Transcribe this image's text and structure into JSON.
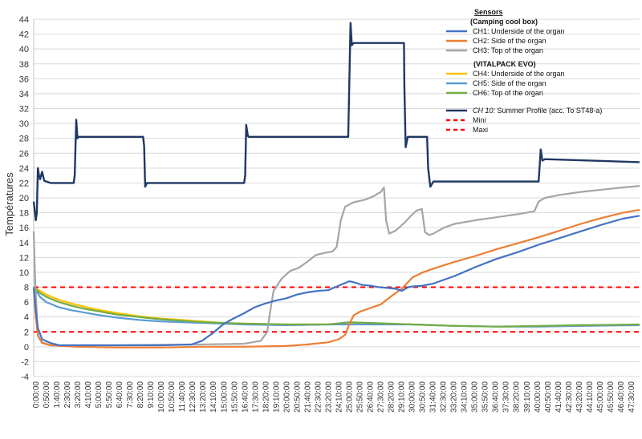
{
  "chart_data": {
    "type": "line",
    "ylabel": "Températures",
    "ylim": [
      -4,
      44
    ],
    "yticks": [
      -4,
      -2,
      0,
      2,
      4,
      6,
      8,
      10,
      12,
      14,
      16,
      18,
      20,
      22,
      24,
      26,
      28,
      30,
      32,
      34,
      36,
      38,
      40,
      42,
      44
    ],
    "xlim_minutes": [
      0,
      2880
    ],
    "grid": "horizontal",
    "legend_position": "top-right",
    "x_tick_labels": [
      "0:00:00",
      "0:50:00",
      "1:40:00",
      "2:30:00",
      "3:20:00",
      "4:10:00",
      "5:00:00",
      "5:50:00",
      "6:40:00",
      "7:30:00",
      "8:20:00",
      "9:10:00",
      "10:00:00",
      "10:50:00",
      "11:40:00",
      "12:30:00",
      "13:20:00",
      "14:10:00",
      "15:00:00",
      "15:50:00",
      "16:40:00",
      "17:30:00",
      "18:20:00",
      "19:10:00",
      "20:00:00",
      "20:50:00",
      "21:40:00",
      "22:30:00",
      "23:20:00",
      "24:10:00",
      "25:00:00",
      "25:50:00",
      "26:40:00",
      "27:30:00",
      "28:20:00",
      "29:10:00",
      "30:00:00",
      "30:50:00",
      "31:40:00",
      "32:30:00",
      "33:20:00",
      "34:10:00",
      "35:00:00",
      "35:50:00",
      "36:40:00",
      "37:30:00",
      "38:20:00",
      "39:10:00",
      "40:00:00",
      "40:50:00",
      "41:40:00",
      "42:30:00",
      "43:20:00",
      "44:10:00",
      "45:00:00",
      "45:50:00",
      "46:40:00",
      "47:30:00"
    ],
    "legend": {
      "sensors_title": "Sensors",
      "group1_title": "(Camping cool box)",
      "group2_title": "(VITALPACK EVO)",
      "ch10_prefix": "CH 10:",
      "ch10_rest": " Summer Profile (acc. To ST48-a)"
    },
    "series": [
      {
        "key": "ch1",
        "name": "CH1: Underside of the organ",
        "color": "#4472C4",
        "points": [
          [
            0,
            8
          ],
          [
            10,
            5
          ],
          [
            20,
            2.5
          ],
          [
            40,
            1
          ],
          [
            80,
            0.5
          ],
          [
            120,
            0.2
          ],
          [
            300,
            0.2
          ],
          [
            600,
            0.2
          ],
          [
            750,
            0.3
          ],
          [
            800,
            0.8
          ],
          [
            850,
            1.8
          ],
          [
            900,
            3
          ],
          [
            950,
            3.8
          ],
          [
            1000,
            4.5
          ],
          [
            1050,
            5.3
          ],
          [
            1100,
            5.8
          ],
          [
            1150,
            6.2
          ],
          [
            1200,
            6.5
          ],
          [
            1250,
            7
          ],
          [
            1300,
            7.3
          ],
          [
            1350,
            7.5
          ],
          [
            1400,
            7.6
          ],
          [
            1450,
            8.2
          ],
          [
            1500,
            8.8
          ],
          [
            1530,
            8.6
          ],
          [
            1560,
            8.3
          ],
          [
            1600,
            8.2
          ],
          [
            1640,
            8
          ],
          [
            1680,
            7.9
          ],
          [
            1720,
            7.8
          ],
          [
            1750,
            7.5
          ],
          [
            1780,
            8
          ],
          [
            1800,
            8.1
          ],
          [
            1850,
            8.2
          ],
          [
            1900,
            8.5
          ],
          [
            2000,
            9.5
          ],
          [
            2100,
            10.7
          ],
          [
            2200,
            11.8
          ],
          [
            2300,
            12.7
          ],
          [
            2400,
            13.7
          ],
          [
            2500,
            14.6
          ],
          [
            2600,
            15.5
          ],
          [
            2700,
            16.4
          ],
          [
            2800,
            17.2
          ],
          [
            2880,
            17.6
          ]
        ]
      },
      {
        "key": "ch2",
        "name": "CH2: Side of the organ",
        "color": "#ED7D31",
        "points": [
          [
            0,
            8
          ],
          [
            10,
            4
          ],
          [
            20,
            1.5
          ],
          [
            40,
            0.5
          ],
          [
            80,
            0.2
          ],
          [
            200,
            0
          ],
          [
            400,
            -0.1
          ],
          [
            600,
            -0.1
          ],
          [
            800,
            0
          ],
          [
            1000,
            0
          ],
          [
            1200,
            0.1
          ],
          [
            1300,
            0.3
          ],
          [
            1400,
            0.6
          ],
          [
            1450,
            1
          ],
          [
            1480,
            1.6
          ],
          [
            1500,
            3
          ],
          [
            1520,
            4.2
          ],
          [
            1550,
            4.7
          ],
          [
            1600,
            5.2
          ],
          [
            1650,
            5.7
          ],
          [
            1700,
            6.8
          ],
          [
            1750,
            7.8
          ],
          [
            1800,
            9.3
          ],
          [
            1850,
            10
          ],
          [
            1900,
            10.5
          ],
          [
            2000,
            11.4
          ],
          [
            2100,
            12.2
          ],
          [
            2200,
            13.1
          ],
          [
            2300,
            13.9
          ],
          [
            2400,
            14.7
          ],
          [
            2500,
            15.6
          ],
          [
            2600,
            16.5
          ],
          [
            2700,
            17.3
          ],
          [
            2800,
            18
          ],
          [
            2880,
            18.4
          ]
        ]
      },
      {
        "key": "ch3",
        "name": "CH3: Top of the organ",
        "color": "#A5A5A5",
        "points": [
          [
            0,
            15.5
          ],
          [
            8,
            8
          ],
          [
            20,
            1.5
          ],
          [
            40,
            0.6
          ],
          [
            80,
            0.2
          ],
          [
            400,
            0.2
          ],
          [
            800,
            0.3
          ],
          [
            1000,
            0.4
          ],
          [
            1080,
            0.8
          ],
          [
            1110,
            2
          ],
          [
            1120,
            4
          ],
          [
            1140,
            7.5
          ],
          [
            1180,
            9.2
          ],
          [
            1220,
            10.2
          ],
          [
            1260,
            10.6
          ],
          [
            1300,
            11.4
          ],
          [
            1340,
            12.3
          ],
          [
            1380,
            12.6
          ],
          [
            1420,
            12.8
          ],
          [
            1440,
            13.4
          ],
          [
            1460,
            17
          ],
          [
            1480,
            18.8
          ],
          [
            1520,
            19.4
          ],
          [
            1580,
            19.8
          ],
          [
            1620,
            20.3
          ],
          [
            1650,
            20.8
          ],
          [
            1665,
            21.4
          ],
          [
            1675,
            17
          ],
          [
            1690,
            15.2
          ],
          [
            1720,
            15.6
          ],
          [
            1760,
            16.6
          ],
          [
            1790,
            17.5
          ],
          [
            1820,
            18.3
          ],
          [
            1845,
            18.5
          ],
          [
            1860,
            15.4
          ],
          [
            1880,
            15
          ],
          [
            1900,
            15.2
          ],
          [
            1950,
            16
          ],
          [
            2000,
            16.5
          ],
          [
            2100,
            17
          ],
          [
            2200,
            17.4
          ],
          [
            2300,
            17.8
          ],
          [
            2380,
            18.2
          ],
          [
            2400,
            19.5
          ],
          [
            2430,
            20
          ],
          [
            2500,
            20.4
          ],
          [
            2600,
            20.8
          ],
          [
            2700,
            21.1
          ],
          [
            2800,
            21.4
          ],
          [
            2880,
            21.6
          ]
        ]
      },
      {
        "key": "ch4",
        "name": "CH4: Underside of the organ",
        "color": "#FFC000",
        "points": [
          [
            0,
            8
          ],
          [
            30,
            7.5
          ],
          [
            60,
            7
          ],
          [
            120,
            6.3
          ],
          [
            180,
            5.8
          ],
          [
            240,
            5.4
          ],
          [
            300,
            5
          ],
          [
            400,
            4.5
          ],
          [
            500,
            4.1
          ],
          [
            600,
            3.8
          ],
          [
            700,
            3.6
          ],
          [
            800,
            3.4
          ],
          [
            900,
            3.2
          ],
          [
            1000,
            3.1
          ],
          [
            1200,
            3
          ],
          [
            1400,
            3
          ],
          [
            1600,
            3.1
          ],
          [
            1800,
            3
          ],
          [
            2000,
            2.8
          ],
          [
            2200,
            2.7
          ],
          [
            2400,
            2.7
          ],
          [
            2600,
            2.8
          ],
          [
            2880,
            2.9
          ]
        ]
      },
      {
        "key": "ch5",
        "name": "CH5: Side of the organ",
        "color": "#5B9BD5",
        "points": [
          [
            0,
            8
          ],
          [
            30,
            6.7
          ],
          [
            60,
            6
          ],
          [
            120,
            5.3
          ],
          [
            180,
            4.9
          ],
          [
            240,
            4.6
          ],
          [
            300,
            4.3
          ],
          [
            400,
            3.9
          ],
          [
            500,
            3.6
          ],
          [
            600,
            3.4
          ],
          [
            700,
            3.3
          ],
          [
            800,
            3.2
          ],
          [
            900,
            3.1
          ],
          [
            1000,
            3
          ],
          [
            1200,
            2.9
          ],
          [
            1400,
            3
          ],
          [
            1600,
            3
          ],
          [
            1800,
            3
          ],
          [
            2000,
            2.8
          ],
          [
            2200,
            2.7
          ],
          [
            2400,
            2.7
          ],
          [
            2600,
            2.8
          ],
          [
            2880,
            2.9
          ]
        ]
      },
      {
        "key": "ch6",
        "name": "CH6: Top of the organ",
        "color": "#70AD47",
        "points": [
          [
            0,
            8
          ],
          [
            30,
            7.2
          ],
          [
            60,
            6.7
          ],
          [
            120,
            6
          ],
          [
            180,
            5.5
          ],
          [
            240,
            5.1
          ],
          [
            300,
            4.8
          ],
          [
            400,
            4.3
          ],
          [
            500,
            4
          ],
          [
            600,
            3.7
          ],
          [
            700,
            3.5
          ],
          [
            800,
            3.3
          ],
          [
            900,
            3.2
          ],
          [
            1000,
            3.1
          ],
          [
            1200,
            3
          ],
          [
            1400,
            3
          ],
          [
            1500,
            3.3
          ],
          [
            1600,
            3.2
          ],
          [
            1800,
            3
          ],
          [
            2000,
            2.8
          ],
          [
            2200,
            2.7
          ],
          [
            2400,
            2.8
          ],
          [
            2600,
            2.9
          ],
          [
            2880,
            3
          ]
        ]
      },
      {
        "key": "ch10",
        "name": "CH 10: Summer Profile (acc. To ST48-a)",
        "color": "#1F3864",
        "points": [
          [
            0,
            19.5
          ],
          [
            10,
            17
          ],
          [
            15,
            18
          ],
          [
            20,
            24
          ],
          [
            25,
            23
          ],
          [
            30,
            22.5
          ],
          [
            40,
            23.5
          ],
          [
            50,
            22.3
          ],
          [
            80,
            22
          ],
          [
            190,
            22
          ],
          [
            195,
            23
          ],
          [
            202,
            30.5
          ],
          [
            208,
            28
          ],
          [
            212,
            28.2
          ],
          [
            520,
            28.2
          ],
          [
            525,
            27
          ],
          [
            530,
            21.5
          ],
          [
            538,
            22
          ],
          [
            1000,
            22
          ],
          [
            1005,
            23
          ],
          [
            1010,
            29.8
          ],
          [
            1018,
            28.3
          ],
          [
            1024,
            28.2
          ],
          [
            1495,
            28.2
          ],
          [
            1500,
            35
          ],
          [
            1506,
            43.5
          ],
          [
            1512,
            40.5
          ],
          [
            1520,
            40.8
          ],
          [
            1760,
            40.8
          ],
          [
            1762,
            35
          ],
          [
            1768,
            26.8
          ],
          [
            1778,
            28.2
          ],
          [
            1870,
            28.2
          ],
          [
            1875,
            24
          ],
          [
            1885,
            21.5
          ],
          [
            1900,
            22.2
          ],
          [
            2400,
            22.2
          ],
          [
            2410,
            26.5
          ],
          [
            2418,
            25
          ],
          [
            2430,
            25.2
          ],
          [
            2880,
            24.8
          ]
        ]
      },
      {
        "key": "mini",
        "name": "Mini",
        "color": "#FF0000",
        "points": [
          [
            0,
            8
          ],
          [
            2880,
            8
          ]
        ]
      },
      {
        "key": "maxi",
        "name": "Maxi",
        "color": "#FF0000",
        "points": [
          [
            0,
            2
          ],
          [
            2880,
            2
          ]
        ]
      }
    ]
  }
}
